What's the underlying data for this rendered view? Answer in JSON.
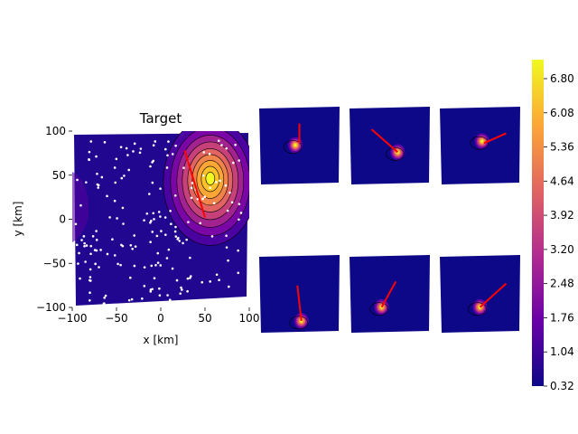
{
  "chart_data": [
    {
      "type": "heatmap",
      "title": "Target",
      "xlabel": "x [km]",
      "ylabel": "y [km]",
      "xlim": [
        -100,
        100
      ],
      "ylim": [
        -100,
        100
      ],
      "xticks": [
        "−100",
        "−50",
        "0",
        "50",
        "100"
      ],
      "yticks": [
        "−100",
        "−50",
        "0",
        "50",
        "100"
      ],
      "peak": {
        "x": 58,
        "y": 38,
        "value": 7.2
      },
      "contours": true,
      "red_segment": {
        "from": [
          27,
          78
        ],
        "to": [
          50,
          2
        ]
      },
      "station_markers": "white dots"
    },
    {
      "type": "heatmap",
      "panel": "row1-col1",
      "blob_center": [
        -10,
        0
      ],
      "contours": true,
      "red_segment": {
        "from": [
          0,
          55
        ],
        "to": [
          0,
          5
        ]
      }
    },
    {
      "type": "heatmap",
      "panel": "row1-col2",
      "blob_center": [
        20,
        -18
      ],
      "contours": true,
      "red_segment": {
        "from": [
          -45,
          40
        ],
        "to": [
          20,
          -18
        ]
      }
    },
    {
      "type": "heatmap",
      "panel": "row1-col3",
      "blob_center": [
        5,
        10
      ],
      "contours": true,
      "red_segment": {
        "from": [
          10,
          5
        ],
        "to": [
          65,
          30
        ]
      }
    },
    {
      "type": "heatmap",
      "panel": "row2-col1",
      "blob_center": [
        5,
        -70
      ],
      "contours": true,
      "red_segment": {
        "from": [
          -5,
          20
        ],
        "to": [
          5,
          -70
        ]
      }
    },
    {
      "type": "heatmap",
      "panel": "row2-col2",
      "blob_center": [
        -20,
        -35
      ],
      "contours": true,
      "red_segment": {
        "from": [
          15,
          30
        ],
        "to": [
          -20,
          -35
        ]
      }
    },
    {
      "type": "heatmap",
      "panel": "row2-col3",
      "blob_center": [
        0,
        -35
      ],
      "contours": true,
      "red_segment": {
        "from": [
          0,
          -35
        ],
        "to": [
          65,
          25
        ]
      }
    },
    {
      "type": "colorbar",
      "colormap": "plasma",
      "range": [
        0.32,
        7.2
      ],
      "ticks": [
        "0.32",
        "1.04",
        "1.76",
        "2.48",
        "3.20",
        "3.92",
        "4.64",
        "5.36",
        "6.08",
        "6.80"
      ]
    }
  ]
}
